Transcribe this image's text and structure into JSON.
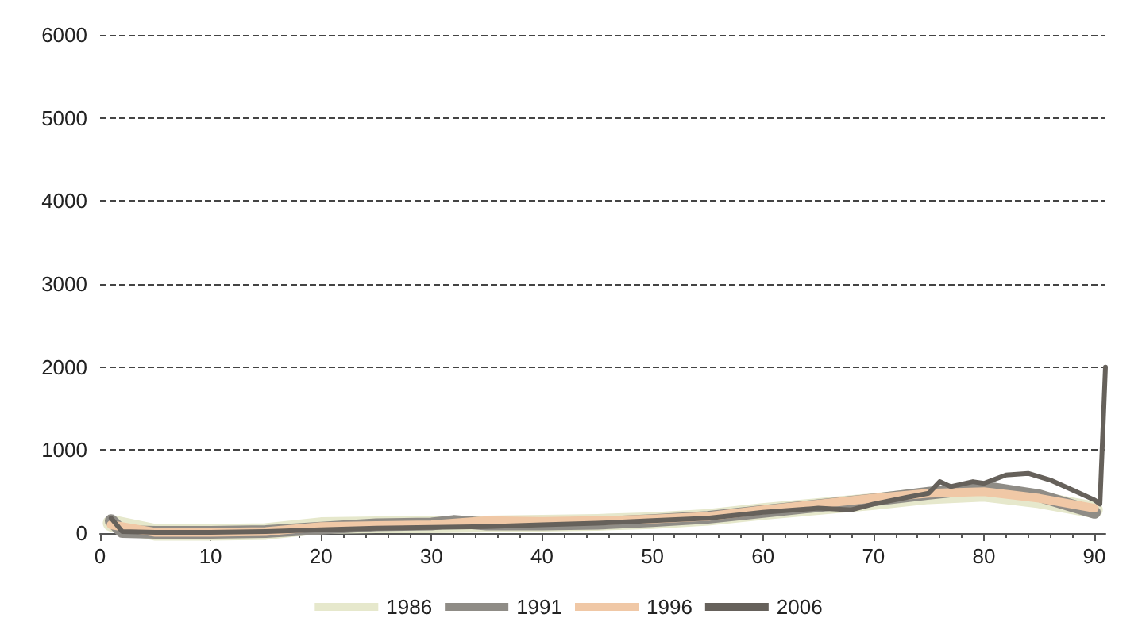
{
  "chart_data": {
    "type": "line",
    "xlim": [
      0,
      91
    ],
    "xticks": [
      0,
      10,
      20,
      30,
      40,
      50,
      60,
      70,
      80,
      90
    ],
    "ylim": [
      0,
      6000
    ],
    "yticks": [
      0,
      1000,
      2000,
      3000,
      4000,
      5000,
      6000
    ],
    "grid": "y",
    "legend": "bottom",
    "marker": "none",
    "line_style": "solid",
    "series": [
      {
        "name": "1986",
        "color": "#e6e8cc",
        "x": [
          1,
          5,
          10,
          15,
          20,
          25,
          30,
          35,
          40,
          45,
          50,
          55,
          60,
          65,
          70,
          75,
          80,
          85,
          90
        ],
        "values": [
          120,
          10,
          10,
          20,
          90,
          100,
          100,
          110,
          120,
          130,
          150,
          190,
          260,
          320,
          380,
          450,
          480,
          400,
          280
        ]
      },
      {
        "name": "1991",
        "color": "#8f8c86",
        "x": [
          1,
          2,
          5,
          10,
          15,
          20,
          25,
          30,
          32,
          35,
          40,
          45,
          50,
          55,
          60,
          65,
          70,
          75,
          80,
          85,
          90
        ],
        "values": [
          150,
          20,
          10,
          10,
          20,
          60,
          100,
          110,
          140,
          110,
          110,
          120,
          150,
          190,
          260,
          330,
          400,
          480,
          550,
          450,
          250
        ]
      },
      {
        "name": "1996",
        "color": "#f0c8a6",
        "x": [
          1,
          5,
          10,
          15,
          20,
          25,
          30,
          35,
          40,
          45,
          50,
          55,
          60,
          65,
          70,
          75,
          80,
          85,
          90
        ],
        "values": [
          100,
          10,
          10,
          20,
          80,
          90,
          100,
          150,
          140,
          150,
          170,
          200,
          280,
          350,
          420,
          480,
          500,
          420,
          300
        ]
      },
      {
        "name": "2006",
        "color": "#66615b",
        "x": [
          1,
          2,
          5,
          10,
          15,
          20,
          25,
          30,
          35,
          40,
          45,
          50,
          55,
          60,
          65,
          68,
          70,
          73,
          75,
          76,
          77,
          79,
          80,
          82,
          84,
          86,
          88,
          90,
          90.5,
          91
        ],
        "values": [
          180,
          20,
          10,
          10,
          20,
          40,
          60,
          70,
          80,
          100,
          120,
          150,
          180,
          250,
          300,
          280,
          350,
          430,
          480,
          620,
          560,
          620,
          600,
          700,
          720,
          640,
          520,
          400,
          350,
          2000
        ]
      }
    ]
  }
}
